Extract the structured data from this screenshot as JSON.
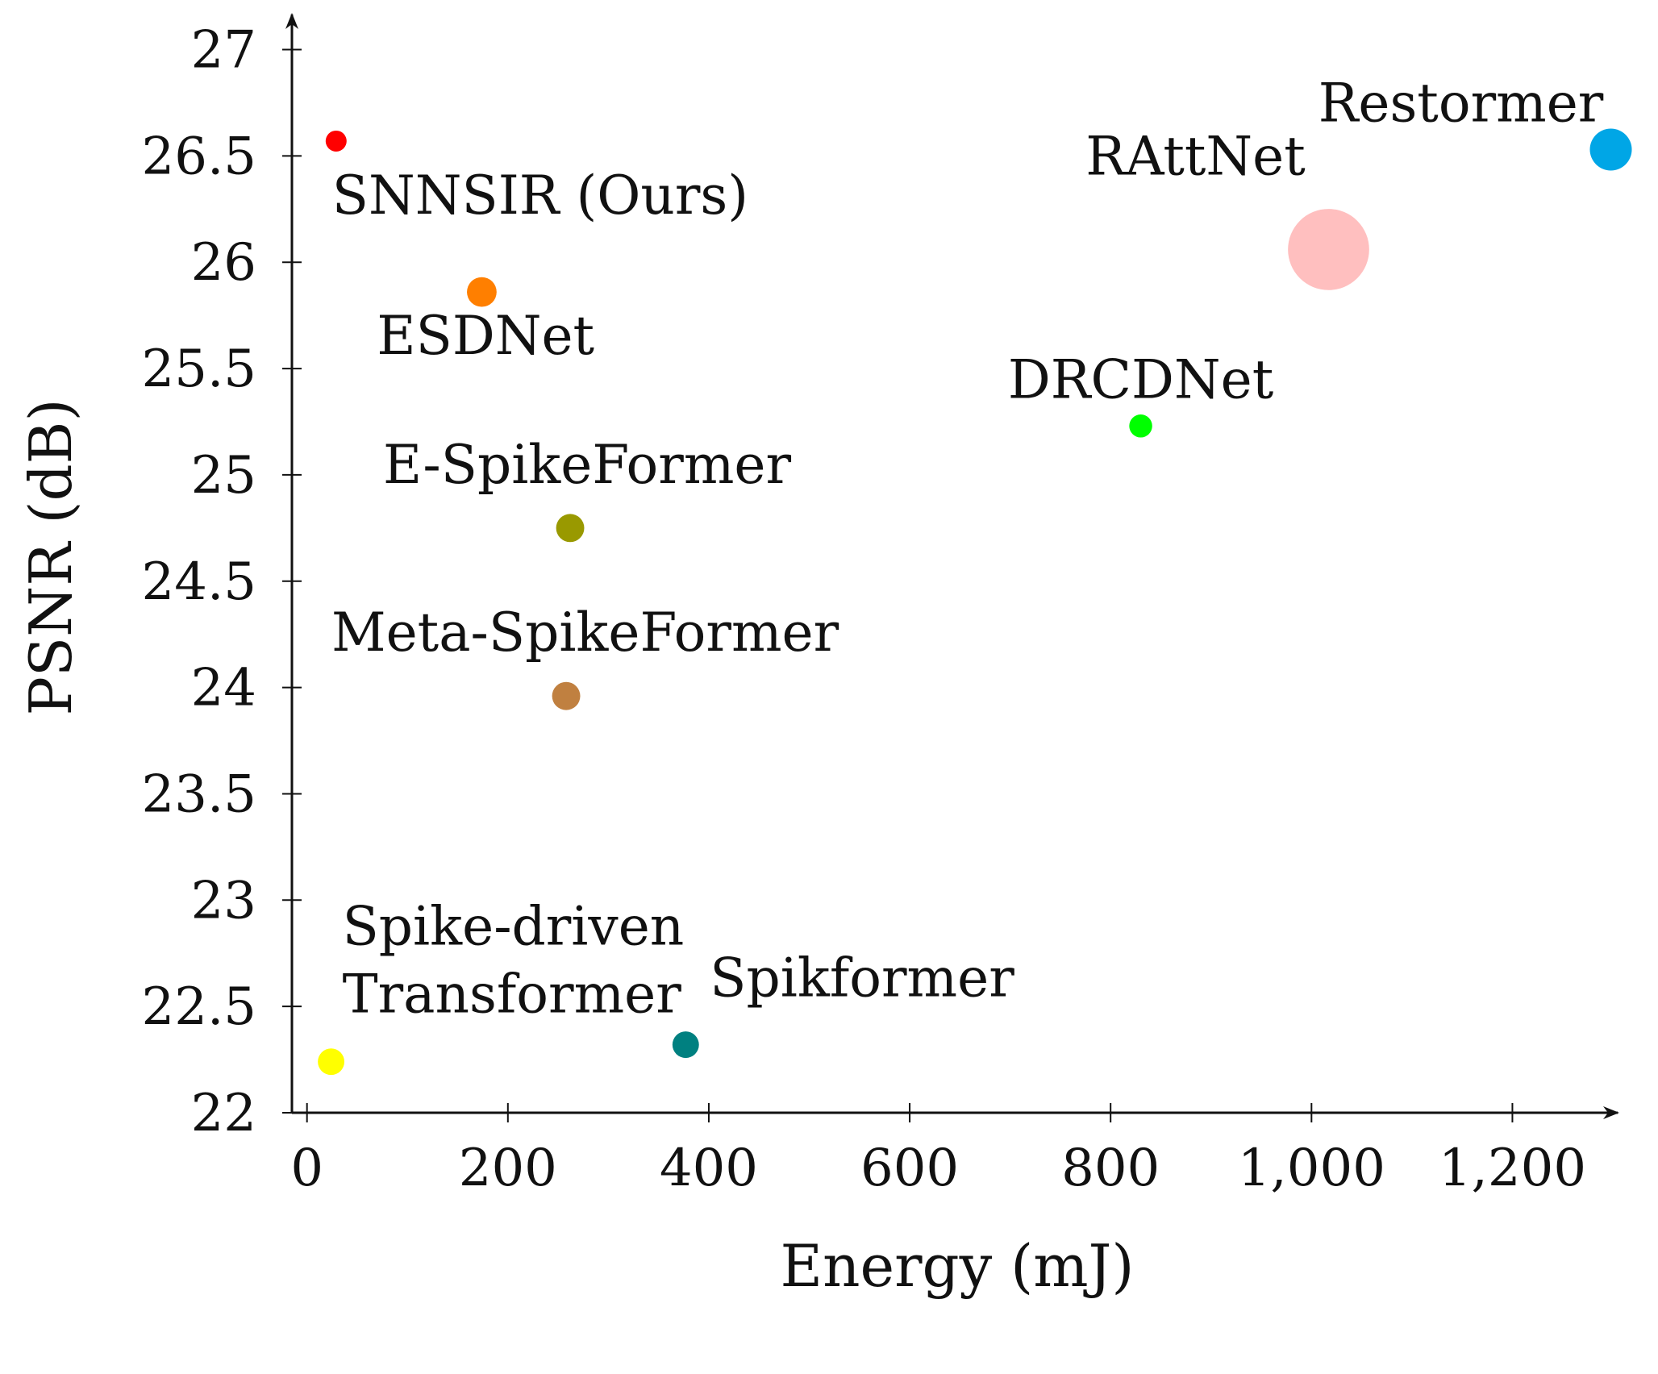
{
  "chart_data": {
    "type": "scatter",
    "title": "",
    "xlabel": "Energy (mJ)",
    "ylabel": "PSNR (dB)",
    "xlim": [
      -15,
      1300
    ],
    "ylim": [
      22,
      27.15
    ],
    "xticks": [
      0,
      200,
      400,
      600,
      800,
      1000,
      1200
    ],
    "xtick_labels": [
      "0",
      "200",
      "400",
      "600",
      "800",
      "1,000",
      "1,200"
    ],
    "yticks": [
      22,
      22.5,
      23,
      23.5,
      24,
      24.5,
      25,
      25.5,
      26,
      26.5,
      27
    ],
    "ytick_labels": [
      "22",
      "22.5",
      "23",
      "23.5",
      "24",
      "24.5",
      "25",
      "25.5",
      "26",
      "26.5",
      "27"
    ],
    "grid": false,
    "points": [
      {
        "label": "SNNSIR (Ours)",
        "x": 29,
        "y": 26.57,
        "color": "#ff0000",
        "size": 1
      },
      {
        "label": "ESDNet",
        "x": 174,
        "y": 25.86,
        "color": "#ff7f00",
        "size": 2
      },
      {
        "label": "E-SpikeFormer",
        "x": 262,
        "y": 24.75,
        "color": "#999900",
        "size": 1.8
      },
      {
        "label": "Meta-SpikeFormer",
        "x": 258,
        "y": 23.96,
        "color": "#c08040",
        "size": 1.8
      },
      {
        "label": "DRCDNet",
        "x": 830,
        "y": 25.23,
        "color": "#00ff00",
        "size": 1.2
      },
      {
        "label": "RAttNet",
        "x": 1017,
        "y": 26.06,
        "color": "#ffbfbf",
        "size": 15
      },
      {
        "label": "Restormer",
        "x": 1298,
        "y": 26.53,
        "color": "#00a6e6",
        "size": 4
      },
      {
        "label": "Spike-driven Transformer",
        "x": 24,
        "y": 22.24,
        "color": "#ffff00",
        "size": 1.6
      },
      {
        "label": "Spikformer",
        "x": 377,
        "y": 22.32,
        "color": "#008080",
        "size": 1.6
      }
    ]
  }
}
